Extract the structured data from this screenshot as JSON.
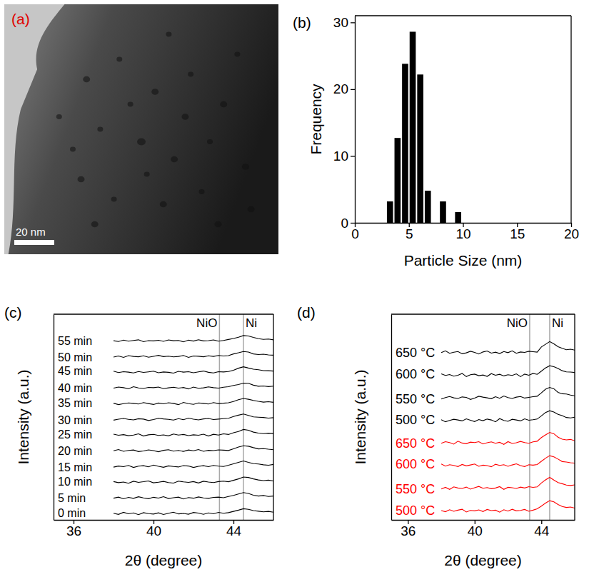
{
  "chart_data": [
    {
      "type": "image",
      "title": "(a)",
      "annotations": [
        {
          "label": "20 nm"
        }
      ]
    },
    {
      "type": "histogram",
      "title": "(b)",
      "x_label": "Particle Size (nm)",
      "y_label": "Frequency",
      "color": "#000000",
      "bins": [
        2.9,
        3.6,
        4.3,
        5.0,
        5.7,
        6.4,
        7.1,
        7.8,
        8.5,
        9.2,
        9.9
      ],
      "values": [
        3.2,
        12.7,
        23.8,
        28.6,
        22.2,
        4.8,
        0,
        3.2,
        0,
        1.6
      ],
      "xlim": [
        0,
        20
      ],
      "xticks": [
        0,
        5,
        10,
        15,
        20
      ],
      "ylim": [
        0,
        31
      ],
      "yticks": [
        0,
        10,
        20,
        30
      ]
    },
    {
      "type": "line",
      "title": "(c)",
      "x_label": "2θ (degree)",
      "y_label": "Intensity (a.u.)",
      "tick_labels": "x",
      "xlim": [
        35,
        46
      ],
      "xticks": [
        36,
        40,
        44
      ],
      "ylim": [
        -0.3,
        12.8
      ],
      "annotations": [
        {
          "label": "NiO",
          "x": 43.3
        },
        {
          "label": "Ni",
          "x": 44.5
        }
      ],
      "x": [
        38,
        38.25,
        38.5,
        38.75,
        39,
        39.25,
        39.5,
        39.75,
        40,
        40.25,
        40.5,
        40.75,
        41,
        41.25,
        41.5,
        41.75,
        42,
        42.25,
        42.5,
        42.75,
        43,
        43.25,
        43.5,
        43.75,
        44,
        44.25,
        44.5,
        44.75,
        45,
        45.25,
        45.5,
        45.75,
        46
      ],
      "series": [
        {
          "name": "0 min",
          "color": "#000000",
          "values": [
            0.12,
            0.05,
            0.18,
            0.09,
            0.14,
            0.03,
            0.16,
            0.1,
            0.07,
            0.15,
            0.04,
            0.12,
            0.19,
            0.08,
            0.11,
            0.06,
            0.17,
            0.13,
            0.05,
            0.14,
            0.09,
            0.18,
            0.12,
            0.16,
            0.24,
            0.32,
            0.41,
            0.37,
            0.29,
            0.25,
            0.21,
            0.24,
            0.19
          ]
        },
        {
          "name": "5 min",
          "color": "#000000",
          "values": [
            1.08,
            1.15,
            1.04,
            1.13,
            1.07,
            1.17,
            1.1,
            1.05,
            1.14,
            1.09,
            1.18,
            1.06,
            1.11,
            1.15,
            1.03,
            1.12,
            1.08,
            1.16,
            1.1,
            1.07,
            1.13,
            1.15,
            1.11,
            1.19,
            1.26,
            1.35,
            1.44,
            1.38,
            1.27,
            1.22,
            1.25,
            1.19,
            1.22
          ]
        },
        {
          "name": "10 min",
          "color": "#000000",
          "values": [
            2.14,
            2.07,
            2.11,
            2.03,
            2.16,
            2.09,
            2.13,
            2.18,
            2.06,
            2.1,
            2.15,
            2.08,
            2.04,
            2.17,
            2.12,
            2.09,
            2.14,
            2.05,
            2.16,
            2.11,
            2.08,
            2.14,
            2.17,
            2.13,
            2.22,
            2.31,
            2.43,
            2.4,
            2.31,
            2.24,
            2.2,
            2.23,
            2.18
          ]
        },
        {
          "name": "15 min",
          "color": "#000000",
          "values": [
            3.06,
            3.13,
            3.09,
            3.17,
            3.04,
            3.12,
            3.15,
            3.08,
            3.19,
            3.11,
            3.05,
            3.14,
            3.1,
            3.07,
            3.16,
            3.13,
            3.04,
            3.11,
            3.15,
            3.09,
            3.17,
            3.12,
            3.1,
            3.18,
            3.27,
            3.36,
            3.45,
            3.36,
            3.28,
            3.26,
            3.21,
            3.18,
            3.23
          ]
        },
        {
          "name": "20 min",
          "color": "#000000",
          "values": [
            4.1,
            4.18,
            4.07,
            4.12,
            4.15,
            4.05,
            4.09,
            4.16,
            4.11,
            4.04,
            4.13,
            4.17,
            4.08,
            4.12,
            4.06,
            4.15,
            4.1,
            4.18,
            4.07,
            4.13,
            4.11,
            4.16,
            4.14,
            4.12,
            4.23,
            4.34,
            4.42,
            4.39,
            4.3,
            4.22,
            4.24,
            4.2,
            4.17
          ]
        },
        {
          "name": "25 min",
          "color": "#000000",
          "values": [
            5.16,
            5.09,
            5.13,
            5.06,
            5.1,
            5.18,
            5.04,
            5.12,
            5.15,
            5.08,
            5.11,
            5.05,
            5.17,
            5.1,
            5.14,
            5.07,
            5.12,
            5.09,
            5.16,
            5.04,
            5.15,
            5.1,
            5.18,
            5.14,
            5.25,
            5.33,
            5.46,
            5.41,
            5.29,
            5.23,
            5.19,
            5.22,
            5.2
          ]
        },
        {
          "name": "30 min",
          "color": "#000000",
          "values": [
            6.05,
            6.11,
            6.16,
            6.1,
            6.07,
            6.14,
            6.12,
            6.03,
            6.09,
            6.17,
            6.13,
            6.1,
            6.06,
            6.15,
            6.08,
            6.18,
            6.11,
            6.07,
            6.13,
            6.16,
            6.09,
            6.12,
            6.15,
            6.17,
            6.28,
            6.37,
            6.44,
            6.35,
            6.26,
            6.24,
            6.22,
            6.18,
            6.21
          ]
        },
        {
          "name": "35 min",
          "color": "#000000",
          "values": [
            7.13,
            7.04,
            7.1,
            7.15,
            7.12,
            7.08,
            7.17,
            7.11,
            7.05,
            7.14,
            7.09,
            7.16,
            7.12,
            7.04,
            7.18,
            7.1,
            7.06,
            7.15,
            7.12,
            7.08,
            7.17,
            7.11,
            7.13,
            7.16,
            7.24,
            7.35,
            7.43,
            7.38,
            7.31,
            7.25,
            7.2,
            7.23,
            7.19
          ]
        },
        {
          "name": "40 min",
          "color": "#000000",
          "values": [
            8.09,
            8.16,
            8.12,
            8.05,
            8.18,
            8.1,
            8.07,
            8.14,
            8.12,
            8.16,
            8.06,
            8.11,
            8.15,
            8.09,
            8.13,
            8.04,
            8.16,
            8.08,
            8.11,
            8.17,
            8.12,
            8.09,
            8.15,
            8.18,
            8.26,
            8.32,
            8.41,
            8.4,
            8.28,
            8.21,
            8.23,
            8.19,
            8.22
          ]
        },
        {
          "name": "45 min",
          "color": "#000000",
          "values": [
            9.17,
            9.08,
            9.14,
            9.11,
            9.06,
            9.15,
            9.09,
            9.13,
            9.17,
            9.07,
            9.12,
            9.1,
            9.05,
            9.16,
            9.11,
            9.14,
            9.07,
            9.13,
            9.18,
            9.1,
            9.06,
            9.14,
            9.12,
            9.15,
            9.23,
            9.36,
            9.45,
            9.37,
            9.3,
            9.26,
            9.21,
            9.2,
            9.18
          ]
        },
        {
          "name": "50 min",
          "color": "#000000",
          "values": [
            10.07,
            10.14,
            10.05,
            10.16,
            10.11,
            10.09,
            10.15,
            10.06,
            10.12,
            10.18,
            10.1,
            10.13,
            10.08,
            10.11,
            10.17,
            10.05,
            10.14,
            10.12,
            10.09,
            10.15,
            10.11,
            10.17,
            10.14,
            10.16,
            10.27,
            10.34,
            10.42,
            10.39,
            10.27,
            10.23,
            10.25,
            10.21,
            10.19
          ]
        },
        {
          "name": "55 min",
          "color": "#000000",
          "values": [
            11.11,
            11.06,
            11.15,
            11.08,
            11.13,
            11.17,
            11.05,
            11.12,
            11.1,
            11.14,
            11.07,
            11.16,
            11.11,
            11.13,
            11.04,
            11.15,
            11.09,
            11.17,
            11.1,
            11.12,
            11.16,
            11.08,
            11.13,
            11.19,
            11.25,
            11.33,
            11.44,
            11.41,
            11.32,
            11.24,
            11.2,
            11.22,
            11.17
          ]
        }
      ]
    },
    {
      "type": "line",
      "title": "(d)",
      "x_label": "2θ (degree)",
      "y_label": "Intensity (a.u.)",
      "tick_labels": "x",
      "xlim": [
        35,
        46
      ],
      "xticks": [
        36,
        40,
        44
      ],
      "ylim": [
        -0.3,
        8.8
      ],
      "annotations": [
        {
          "label": "NiO",
          "x": 43.3
        },
        {
          "label": "Ni",
          "x": 44.5
        }
      ],
      "x": [
        38,
        38.25,
        38.5,
        38.75,
        39,
        39.25,
        39.5,
        39.75,
        40,
        40.25,
        40.5,
        40.75,
        41,
        41.25,
        41.5,
        41.75,
        42,
        42.25,
        42.5,
        42.75,
        43,
        43.25,
        43.5,
        43.75,
        44,
        44.25,
        44.5,
        44.75,
        45,
        45.25,
        45.5,
        45.75,
        46
      ],
      "series": [
        {
          "name": "500 °C",
          "color": "#ff0000",
          "values": [
            0.11,
            0.06,
            0.15,
            0.08,
            0.13,
            0.17,
            0.05,
            0.12,
            0.1,
            0.14,
            0.07,
            0.16,
            0.11,
            0.13,
            0.04,
            0.15,
            0.09,
            0.17,
            0.1,
            0.12,
            0.16,
            0.08,
            0.13,
            0.19,
            0.31,
            0.44,
            0.55,
            0.5,
            0.38,
            0.29,
            0.25,
            0.27,
            0.22
          ]
        },
        {
          "name": "550 °C",
          "color": "#ff0000",
          "values": [
            1.07,
            1.14,
            1.05,
            1.16,
            1.11,
            1.09,
            1.15,
            1.06,
            1.12,
            1.18,
            1.1,
            1.13,
            1.08,
            1.11,
            1.17,
            1.05,
            1.14,
            1.12,
            1.09,
            1.15,
            1.11,
            1.17,
            1.14,
            1.16,
            1.33,
            1.47,
            1.58,
            1.46,
            1.35,
            1.3,
            1.24,
            1.22,
            1.25
          ]
        },
        {
          "name": "600 °C",
          "color": "#ff0000",
          "values": [
            2.17,
            2.08,
            2.14,
            2.11,
            2.06,
            2.15,
            2.09,
            2.13,
            2.17,
            2.07,
            2.12,
            2.1,
            2.05,
            2.16,
            2.11,
            2.14,
            2.07,
            2.13,
            2.18,
            2.1,
            2.06,
            2.14,
            2.12,
            2.15,
            2.29,
            2.43,
            2.54,
            2.49,
            2.39,
            2.28,
            2.26,
            2.23,
            2.21
          ]
        },
        {
          "name": "650 °C",
          "color": "#ff0000",
          "values": [
            3.09,
            3.16,
            3.12,
            3.05,
            3.18,
            3.1,
            3.07,
            3.14,
            3.12,
            3.16,
            3.06,
            3.11,
            3.15,
            3.09,
            3.13,
            3.04,
            3.16,
            3.08,
            3.11,
            3.17,
            3.12,
            3.09,
            3.15,
            3.18,
            3.34,
            3.46,
            3.57,
            3.51,
            3.36,
            3.27,
            3.24,
            3.26,
            3.2
          ]
        },
        {
          "name": "500 °C",
          "color": "#000000",
          "values": [
            4.13,
            4.04,
            4.1,
            4.15,
            4.12,
            4.08,
            4.17,
            4.11,
            4.05,
            4.14,
            4.09,
            4.16,
            4.12,
            4.04,
            4.18,
            4.1,
            4.06,
            4.15,
            4.12,
            4.08,
            4.17,
            4.11,
            4.13,
            4.16,
            4.3,
            4.45,
            4.53,
            4.47,
            4.37,
            4.31,
            4.23,
            4.21,
            4.24
          ]
        },
        {
          "name": "550 °C",
          "color": "#000000",
          "values": [
            5.05,
            5.11,
            5.16,
            5.1,
            5.07,
            5.14,
            5.12,
            5.03,
            5.09,
            5.17,
            5.13,
            5.1,
            5.06,
            5.15,
            5.08,
            5.18,
            5.11,
            5.07,
            5.13,
            5.16,
            5.09,
            5.12,
            5.15,
            5.17,
            5.32,
            5.48,
            5.56,
            5.5,
            5.34,
            5.28,
            5.27,
            5.22,
            5.19
          ]
        },
        {
          "name": "600 °C",
          "color": "#000000",
          "values": [
            6.16,
            6.09,
            6.13,
            6.06,
            6.1,
            6.18,
            6.04,
            6.12,
            6.15,
            6.08,
            6.11,
            6.05,
            6.17,
            6.1,
            6.14,
            6.07,
            6.12,
            6.09,
            6.16,
            6.04,
            6.15,
            6.1,
            6.18,
            6.14,
            6.28,
            6.42,
            6.52,
            6.48,
            6.4,
            6.3,
            6.25,
            6.24,
            6.22
          ]
        },
        {
          "name": "650 °C",
          "color": "#000000",
          "values": [
            7.1,
            7.18,
            7.07,
            7.12,
            7.15,
            7.05,
            7.09,
            7.16,
            7.11,
            7.04,
            7.13,
            7.17,
            7.08,
            7.12,
            7.06,
            7.15,
            7.1,
            7.18,
            7.07,
            7.13,
            7.11,
            7.16,
            7.14,
            7.12,
            7.35,
            7.47,
            7.59,
            7.49,
            7.36,
            7.29,
            7.23,
            7.25,
            7.21
          ]
        }
      ]
    }
  ]
}
